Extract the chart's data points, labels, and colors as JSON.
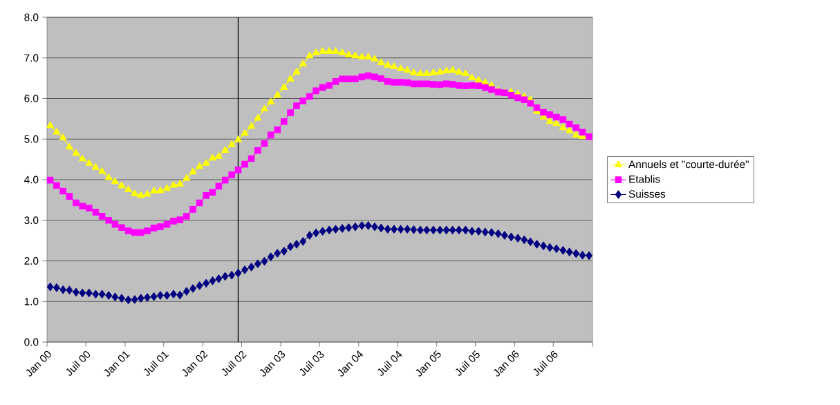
{
  "chart_data": {
    "type": "line",
    "x": [
      "2000-01-16",
      "2000-02-15",
      "2000-03-16",
      "2000-04-15",
      "2000-05-16",
      "2000-06-15",
      "2000-07-16",
      "2000-08-16",
      "2000-09-15",
      "2000-10-16",
      "2000-11-15",
      "2000-12-16",
      "2001-01-16",
      "2001-02-15",
      "2001-03-16",
      "2001-04-15",
      "2001-05-16",
      "2001-06-15",
      "2001-07-16",
      "2001-08-16",
      "2001-09-15",
      "2001-10-16",
      "2001-11-15",
      "2001-12-16",
      "2002-01-16",
      "2002-02-15",
      "2002-03-16",
      "2002-04-15",
      "2002-05-16",
      "2002-06-15",
      "2002-07-16",
      "2002-08-16",
      "2002-09-15",
      "2002-10-16",
      "2002-11-15",
      "2002-12-16",
      "2003-01-16",
      "2003-02-15",
      "2003-03-16",
      "2003-04-15",
      "2003-05-16",
      "2003-06-15",
      "2003-07-16",
      "2003-08-16",
      "2003-09-15",
      "2003-10-16",
      "2003-11-15",
      "2003-12-16",
      "2004-01-16",
      "2004-02-15",
      "2004-03-16",
      "2004-04-15",
      "2004-05-16",
      "2004-06-15",
      "2004-07-16",
      "2004-08-16",
      "2004-09-15",
      "2004-10-16",
      "2004-11-15",
      "2004-12-16",
      "2005-01-16",
      "2005-02-15",
      "2005-03-16",
      "2005-04-15",
      "2005-05-16",
      "2005-06-15",
      "2005-07-16",
      "2005-08-16",
      "2005-09-15",
      "2005-10-16",
      "2005-11-15",
      "2005-12-16",
      "2006-01-16",
      "2006-02-15",
      "2006-03-16",
      "2006-04-15",
      "2006-05-16",
      "2006-06-15",
      "2006-07-16",
      "2006-08-16",
      "2006-09-15",
      "2006-10-16",
      "2006-11-15",
      "2006-12-16"
    ],
    "series": [
      {
        "name": "Annuels et \"courte-durée\"",
        "color": "#ffff00",
        "marker": "triangle",
        "values": [
          5.33,
          5.17,
          5.03,
          4.8,
          4.65,
          4.51,
          4.4,
          4.3,
          4.2,
          4.05,
          3.95,
          3.85,
          3.75,
          3.65,
          3.61,
          3.64,
          3.72,
          3.73,
          3.78,
          3.86,
          3.89,
          4.03,
          4.19,
          4.32,
          4.4,
          4.53,
          4.57,
          4.72,
          4.86,
          4.98,
          5.14,
          5.31,
          5.51,
          5.74,
          5.91,
          6.08,
          6.27,
          6.48,
          6.65,
          6.85,
          7.05,
          7.12,
          7.16,
          7.16,
          7.16,
          7.12,
          7.07,
          7.05,
          7.02,
          7.02,
          6.97,
          6.88,
          6.82,
          6.78,
          6.73,
          6.69,
          6.63,
          6.61,
          6.61,
          6.63,
          6.65,
          6.68,
          6.69,
          6.65,
          6.61,
          6.51,
          6.45,
          6.39,
          6.32,
          6.19,
          6.14,
          6.16,
          6.1,
          6.04,
          5.97,
          5.68,
          5.54,
          5.43,
          5.38,
          5.28,
          5.2,
          5.09,
          5.06,
          5.06
        ]
      },
      {
        "name": "Etablis",
        "color": "#ff00ff",
        "marker": "square",
        "values": [
          3.99,
          3.86,
          3.72,
          3.59,
          3.43,
          3.35,
          3.3,
          3.2,
          3.1,
          3.0,
          2.9,
          2.82,
          2.74,
          2.7,
          2.7,
          2.74,
          2.81,
          2.84,
          2.9,
          2.98,
          3.01,
          3.1,
          3.27,
          3.43,
          3.61,
          3.69,
          3.84,
          3.99,
          4.12,
          4.24,
          4.38,
          4.52,
          4.72,
          4.89,
          5.1,
          5.23,
          5.43,
          5.65,
          5.82,
          5.94,
          6.05,
          6.19,
          6.27,
          6.32,
          6.42,
          6.48,
          6.48,
          6.48,
          6.53,
          6.56,
          6.53,
          6.49,
          6.42,
          6.4,
          6.4,
          6.39,
          6.36,
          6.36,
          6.36,
          6.35,
          6.34,
          6.36,
          6.35,
          6.32,
          6.31,
          6.32,
          6.31,
          6.27,
          6.22,
          6.16,
          6.14,
          6.08,
          6.02,
          5.97,
          5.88,
          5.77,
          5.66,
          5.6,
          5.54,
          5.48,
          5.37,
          5.28,
          5.17,
          5.06
        ]
      },
      {
        "name": "Suisses",
        "color": "#000080",
        "marker": "diamond",
        "values": [
          1.36,
          1.34,
          1.29,
          1.28,
          1.23,
          1.21,
          1.21,
          1.18,
          1.18,
          1.15,
          1.11,
          1.08,
          1.04,
          1.05,
          1.08,
          1.1,
          1.12,
          1.15,
          1.15,
          1.18,
          1.16,
          1.25,
          1.32,
          1.39,
          1.45,
          1.51,
          1.56,
          1.62,
          1.65,
          1.7,
          1.78,
          1.85,
          1.93,
          1.99,
          2.1,
          2.19,
          2.24,
          2.35,
          2.41,
          2.48,
          2.63,
          2.69,
          2.73,
          2.76,
          2.78,
          2.8,
          2.82,
          2.84,
          2.87,
          2.87,
          2.84,
          2.81,
          2.78,
          2.78,
          2.78,
          2.78,
          2.77,
          2.76,
          2.76,
          2.76,
          2.76,
          2.76,
          2.76,
          2.76,
          2.76,
          2.73,
          2.73,
          2.71,
          2.7,
          2.67,
          2.63,
          2.59,
          2.56,
          2.52,
          2.47,
          2.41,
          2.37,
          2.33,
          2.3,
          2.26,
          2.22,
          2.18,
          2.14,
          2.13
        ]
      }
    ],
    "xlim": [
      "2000-01-01",
      "2007-01-01"
    ],
    "xticks": [
      {
        "value": "2000-01-01",
        "label": "Jan 00"
      },
      {
        "value": "2000-07-01",
        "label": "Juil 00"
      },
      {
        "value": "2001-01-01",
        "label": "Jan 01"
      },
      {
        "value": "2001-07-01",
        "label": "Juil 01"
      },
      {
        "value": "2002-01-01",
        "label": "Jan 02"
      },
      {
        "value": "2002-07-01",
        "label": "Juil 02"
      },
      {
        "value": "2003-01-01",
        "label": "Jan 03"
      },
      {
        "value": "2003-07-01",
        "label": "Juil 03"
      },
      {
        "value": "2004-01-01",
        "label": "Jan 04"
      },
      {
        "value": "2004-07-01",
        "label": "Juil 04"
      },
      {
        "value": "2005-01-01",
        "label": "Jan 05"
      },
      {
        "value": "2005-07-01",
        "label": "Juil 05"
      },
      {
        "value": "2006-01-01",
        "label": "Jan 06"
      },
      {
        "value": "2006-07-01",
        "label": "Juil 06"
      },
      {
        "value": "2007-01-01",
        "label": null
      }
    ],
    "ylim": [
      0,
      8
    ],
    "yticks": [
      {
        "value": 0,
        "label": "0.0"
      },
      {
        "value": 1,
        "label": "1.0"
      },
      {
        "value": 2,
        "label": "2.0"
      },
      {
        "value": 3,
        "label": "3.0"
      },
      {
        "value": 4,
        "label": "4.0"
      },
      {
        "value": 5,
        "label": "5.0"
      },
      {
        "value": 6,
        "label": "6.0"
      },
      {
        "value": 7,
        "label": "7.0"
      },
      {
        "value": 8,
        "label": "8.0"
      }
    ],
    "ref_lines": [
      {
        "axis": "x",
        "value": "2002-06-15",
        "color": "#000000"
      }
    ],
    "grid": "y",
    "legend": "right"
  }
}
